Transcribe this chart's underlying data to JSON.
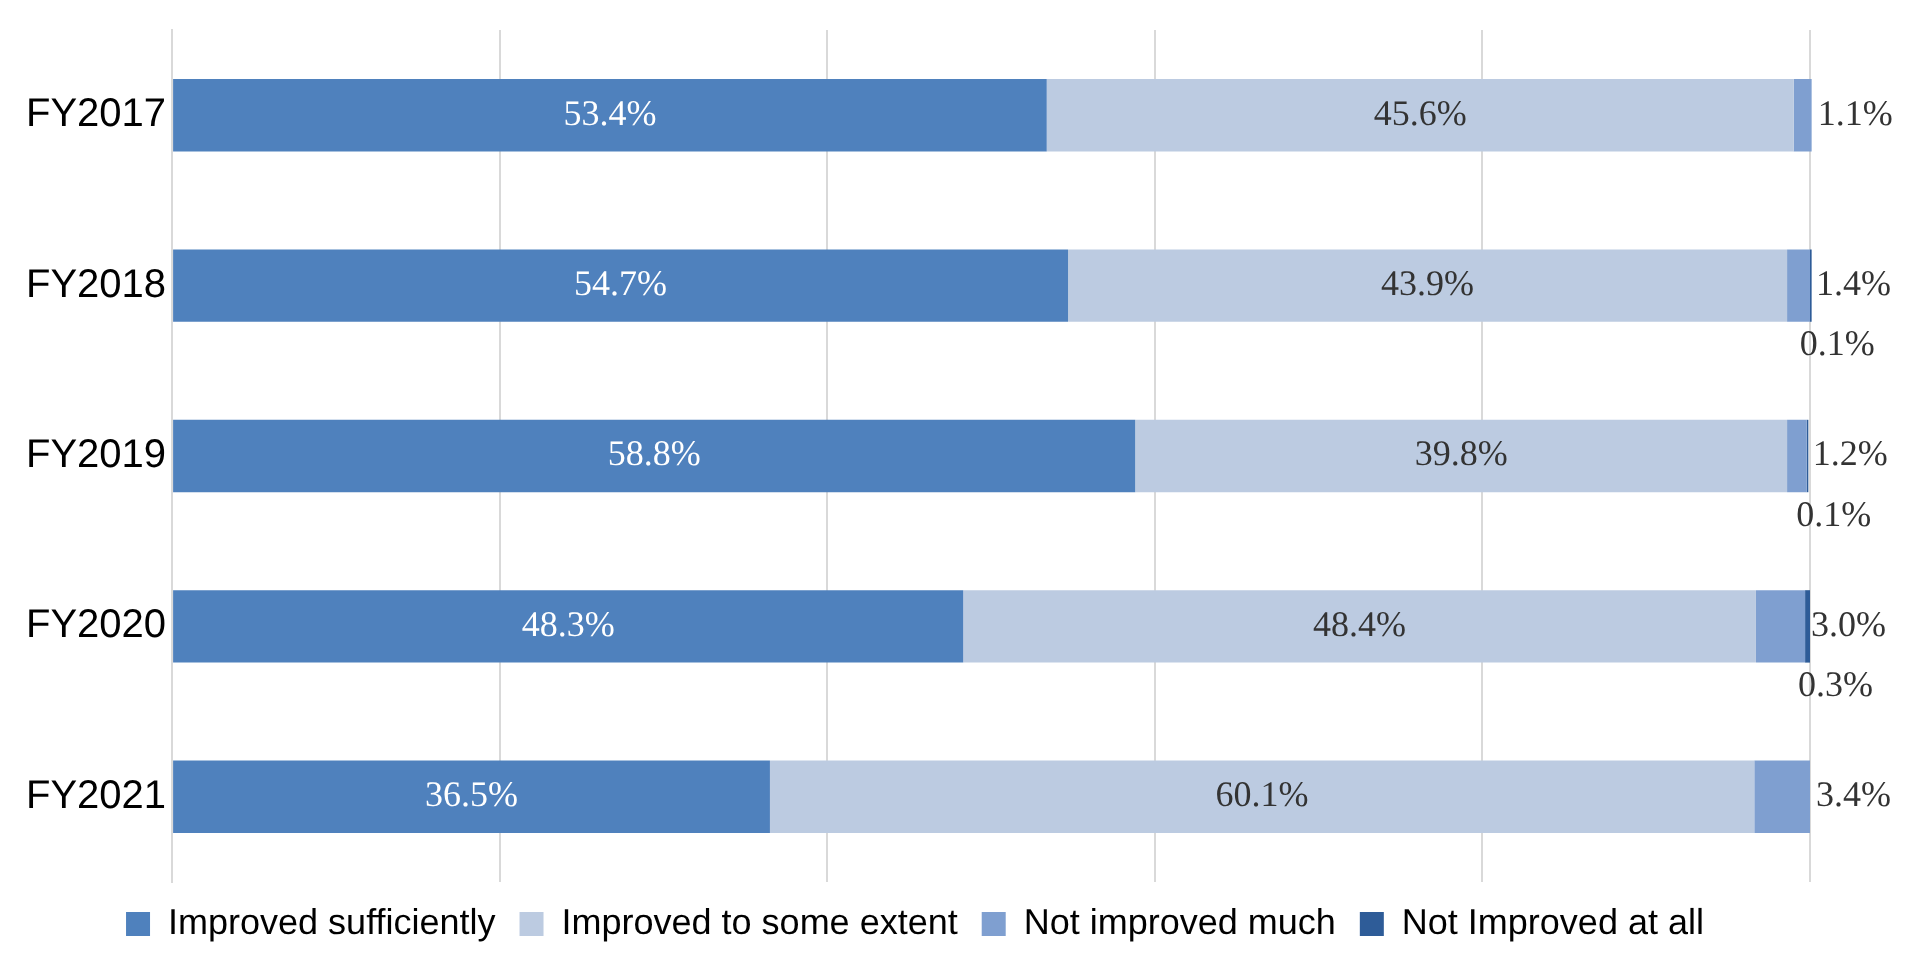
{
  "chart_data": {
    "type": "bar",
    "orientation": "horizontal",
    "stacked": true,
    "categories": [
      "FY2017",
      "FY2018",
      "FY2019",
      "FY2020",
      "FY2021"
    ],
    "series": [
      {
        "name": "Improved sufficiently",
        "color": "#4f81bd",
        "values": [
          53.4,
          54.7,
          58.8,
          48.3,
          36.5
        ],
        "value_labels": [
          "53.4%",
          "54.7%",
          "58.8%",
          "48.3%",
          "36.5%"
        ]
      },
      {
        "name": "Improved to some extent",
        "color": "#bccbe1",
        "values": [
          45.6,
          43.9,
          39.8,
          48.4,
          60.1
        ],
        "value_labels": [
          "45.6%",
          "43.9%",
          "39.8%",
          "48.4%",
          "60.1%"
        ]
      },
      {
        "name": "Not improved much",
        "color": "#7f9fd0",
        "values": [
          1.1,
          1.4,
          1.2,
          3.0,
          3.4
        ],
        "value_labels": [
          "1.1%",
          "1.4%",
          "1.2%",
          "3.0%",
          "3.4%"
        ]
      },
      {
        "name": "Not Improved at all",
        "color": "#2e5c98",
        "values": [
          null,
          0.1,
          0.1,
          0.3,
          null
        ],
        "value_labels": [
          null,
          "0.1%",
          "0.1%",
          "0.3%",
          null
        ]
      }
    ],
    "xlim": [
      0,
      100
    ],
    "xticks": [
      {
        "value": 0,
        "label": null
      },
      {
        "value": 20,
        "label": null
      },
      {
        "value": 40,
        "label": null
      },
      {
        "value": 60,
        "label": null
      },
      {
        "value": 80,
        "label": null
      },
      {
        "value": 100,
        "label": null
      }
    ],
    "grid": "x",
    "legend": "bottom",
    "tick_labels": "y"
  }
}
